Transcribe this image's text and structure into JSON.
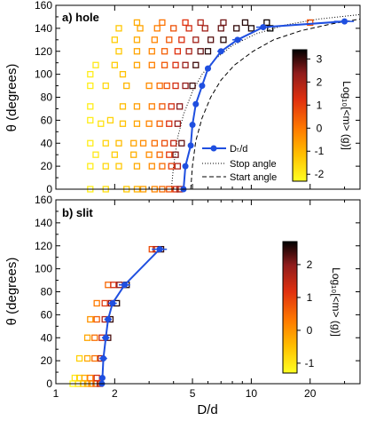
{
  "x_axis": {
    "label": "D/d",
    "ticks": [
      1,
      2,
      5,
      10,
      20
    ],
    "tick_labels": [
      "1",
      "2",
      "5",
      "10",
      "20"
    ],
    "xlim": [
      1,
      36
    ]
  },
  "chart_data": [
    {
      "type": "scatter",
      "panel_label": "a) hole",
      "ylabel": "θ (degrees)",
      "ylim": [
        0,
        160
      ],
      "y_ticks": [
        0,
        20,
        40,
        60,
        80,
        100,
        120,
        140,
        160
      ],
      "xscale": "log",
      "color_scale": {
        "label": "Log₁₀[<m> (g)]",
        "range": [
          -2.3,
          3.4
        ],
        "ticks": [
          -2,
          -1,
          0,
          1,
          2,
          3
        ],
        "tick_labels": [
          "-2",
          "-1",
          "0",
          "1",
          "2",
          "3"
        ],
        "colormap": [
          "#ffff22",
          "#ffc000",
          "#ff7a00",
          "#e0300f",
          "#901c1c",
          "#000000"
        ]
      },
      "legend": {
        "position": "lower-right",
        "entries": [
          "Dₜ/d",
          "Stop angle",
          "Start angle"
        ]
      },
      "series": [
        {
          "name": "Dₜ/d",
          "color": "#1f4fe0",
          "x": [
            4.5,
            4.6,
            4.9,
            5.0,
            5.2,
            5.6,
            6.0,
            7.0,
            8.5,
            11.5,
            30
          ],
          "y": [
            0,
            20,
            38,
            56,
            74,
            90,
            105,
            120,
            130,
            141,
            146
          ],
          "x_err": [
            0.1,
            0.1,
            0.12,
            0.12,
            0.15,
            0.15,
            0.2,
            0.3,
            0.5,
            0.9,
            3.5
          ]
        },
        {
          "name": "Stop angle",
          "style": "dotted",
          "x": [
            3.9,
            4.0,
            4.2,
            4.5,
            5.0,
            5.6,
            6.5,
            8.0,
            10.5,
            15,
            22,
            36
          ],
          "y": [
            0,
            20,
            45,
            65,
            85,
            100,
            113,
            125,
            135,
            143,
            148,
            152
          ]
        },
        {
          "name": "Start angle",
          "style": "dashed",
          "x": [
            4.9,
            5.0,
            5.2,
            5.6,
            6.2,
            7.0,
            8.2,
            10.2,
            13,
            18,
            26,
            36
          ],
          "y": [
            0,
            20,
            42,
            62,
            80,
            95,
            108,
            120,
            130,
            138,
            144,
            148
          ]
        }
      ],
      "points": [
        {
          "x": 1.5,
          "y": 0,
          "c": -2.0
        },
        {
          "x": 1.8,
          "y": 0,
          "c": -1.7
        },
        {
          "x": 2.3,
          "y": 0,
          "c": -1.3
        },
        {
          "x": 2.6,
          "y": 0,
          "c": -0.9
        },
        {
          "x": 2.8,
          "y": 0,
          "c": -0.6
        },
        {
          "x": 3.2,
          "y": 0,
          "c": -0.2
        },
        {
          "x": 3.5,
          "y": 0,
          "c": 0.2
        },
        {
          "x": 3.8,
          "y": 0,
          "c": 0.6
        },
        {
          "x": 4.1,
          "y": 0,
          "c": 1.2
        },
        {
          "x": 4.3,
          "y": 0,
          "c": 2.0
        },
        {
          "x": 1.5,
          "y": 20,
          "c": -2.0
        },
        {
          "x": 1.8,
          "y": 20,
          "c": -1.6
        },
        {
          "x": 2.1,
          "y": 20,
          "c": -1.3
        },
        {
          "x": 2.6,
          "y": 20,
          "c": -0.8
        },
        {
          "x": 3.1,
          "y": 20,
          "c": -0.3
        },
        {
          "x": 3.5,
          "y": 20,
          "c": 0.2
        },
        {
          "x": 3.9,
          "y": 20,
          "c": 0.9
        },
        {
          "x": 4.2,
          "y": 20,
          "c": 1.8
        },
        {
          "x": 1.6,
          "y": 30,
          "c": -1.9
        },
        {
          "x": 2.0,
          "y": 30,
          "c": -1.4
        },
        {
          "x": 2.5,
          "y": 30,
          "c": -0.9
        },
        {
          "x": 3.0,
          "y": 30,
          "c": -0.3
        },
        {
          "x": 3.4,
          "y": 30,
          "c": 0.3
        },
        {
          "x": 3.8,
          "y": 30,
          "c": 1.0
        },
        {
          "x": 4.1,
          "y": 30,
          "c": 2.4
        },
        {
          "x": 1.5,
          "y": 40,
          "c": -2.0
        },
        {
          "x": 1.8,
          "y": 40,
          "c": -1.5
        },
        {
          "x": 2.1,
          "y": 40,
          "c": -1.1
        },
        {
          "x": 2.5,
          "y": 40,
          "c": -0.7
        },
        {
          "x": 2.8,
          "y": 40,
          "c": -0.3
        },
        {
          "x": 3.2,
          "y": 40,
          "c": 0.2
        },
        {
          "x": 3.6,
          "y": 40,
          "c": 0.7
        },
        {
          "x": 4.0,
          "y": 40,
          "c": 1.5
        },
        {
          "x": 4.4,
          "y": 40,
          "c": 2.6
        },
        {
          "x": 1.7,
          "y": 57,
          "c": -1.8
        },
        {
          "x": 2.2,
          "y": 57,
          "c": -1.2
        },
        {
          "x": 2.6,
          "y": 57,
          "c": -0.7
        },
        {
          "x": 3.0,
          "y": 57,
          "c": -0.2
        },
        {
          "x": 3.4,
          "y": 57,
          "c": 0.4
        },
        {
          "x": 3.8,
          "y": 57,
          "c": 1.2
        },
        {
          "x": 4.2,
          "y": 57,
          "c": 2.2
        },
        {
          "x": 1.5,
          "y": 60,
          "c": -2.0
        },
        {
          "x": 1.9,
          "y": 60,
          "c": -1.5
        },
        {
          "x": 1.5,
          "y": 72,
          "c": -2.0
        },
        {
          "x": 2.2,
          "y": 72,
          "c": -1.1
        },
        {
          "x": 2.6,
          "y": 72,
          "c": -0.6
        },
        {
          "x": 3.1,
          "y": 72,
          "c": -0.1
        },
        {
          "x": 3.5,
          "y": 72,
          "c": 0.5
        },
        {
          "x": 3.9,
          "y": 72,
          "c": 1.3
        },
        {
          "x": 4.3,
          "y": 72,
          "c": 2.3
        },
        {
          "x": 1.5,
          "y": 90,
          "c": -2.0
        },
        {
          "x": 1.8,
          "y": 90,
          "c": -1.6
        },
        {
          "x": 2.3,
          "y": 90,
          "c": -1.0
        },
        {
          "x": 3.0,
          "y": 90,
          "c": -0.3
        },
        {
          "x": 3.4,
          "y": 90,
          "c": 0.2
        },
        {
          "x": 3.7,
          "y": 90,
          "c": 0.6
        },
        {
          "x": 4.1,
          "y": 90,
          "c": 1.3
        },
        {
          "x": 4.6,
          "y": 90,
          "c": 2.2
        },
        {
          "x": 5.0,
          "y": 90,
          "c": 2.9
        },
        {
          "x": 1.5,
          "y": 100,
          "c": -2.0
        },
        {
          "x": 2.2,
          "y": 100,
          "c": -1.2
        },
        {
          "x": 1.6,
          "y": 108,
          "c": -1.9
        },
        {
          "x": 2.0,
          "y": 108,
          "c": -1.4
        },
        {
          "x": 2.6,
          "y": 108,
          "c": -0.7
        },
        {
          "x": 3.1,
          "y": 108,
          "c": -0.1
        },
        {
          "x": 3.6,
          "y": 108,
          "c": 0.5
        },
        {
          "x": 4.1,
          "y": 108,
          "c": 1.2
        },
        {
          "x": 4.6,
          "y": 108,
          "c": 2.1
        },
        {
          "x": 5.2,
          "y": 108,
          "c": 2.9
        },
        {
          "x": 2.1,
          "y": 120,
          "c": -1.3
        },
        {
          "x": 2.6,
          "y": 120,
          "c": -0.7
        },
        {
          "x": 3.1,
          "y": 120,
          "c": -0.2
        },
        {
          "x": 3.6,
          "y": 120,
          "c": 0.4
        },
        {
          "x": 4.2,
          "y": 120,
          "c": 1.1
        },
        {
          "x": 4.8,
          "y": 120,
          "c": 1.9
        },
        {
          "x": 5.5,
          "y": 120,
          "c": 2.6
        },
        {
          "x": 6.0,
          "y": 120,
          "c": 3.1
        },
        {
          "x": 2.0,
          "y": 130,
          "c": -1.4
        },
        {
          "x": 2.6,
          "y": 130,
          "c": -0.8
        },
        {
          "x": 3.2,
          "y": 130,
          "c": -0.2
        },
        {
          "x": 3.8,
          "y": 130,
          "c": 0.5
        },
        {
          "x": 4.4,
          "y": 130,
          "c": 1.2
        },
        {
          "x": 5.2,
          "y": 130,
          "c": 2.0
        },
        {
          "x": 6.2,
          "y": 130,
          "c": 2.7
        },
        {
          "x": 7.2,
          "y": 130,
          "c": 3.1
        },
        {
          "x": 2.1,
          "y": 140,
          "c": -1.3
        },
        {
          "x": 2.7,
          "y": 140,
          "c": -0.7
        },
        {
          "x": 3.3,
          "y": 140,
          "c": -0.1
        },
        {
          "x": 4.0,
          "y": 140,
          "c": 0.6
        },
        {
          "x": 4.8,
          "y": 140,
          "c": 1.3
        },
        {
          "x": 5.8,
          "y": 140,
          "c": 2.0
        },
        {
          "x": 7.0,
          "y": 140,
          "c": 2.6
        },
        {
          "x": 8.4,
          "y": 140,
          "c": 3.0
        },
        {
          "x": 10.0,
          "y": 140,
          "c": 3.2
        },
        {
          "x": 12.5,
          "y": 140,
          "c": 3.4
        },
        {
          "x": 2.6,
          "y": 145,
          "c": -0.8
        },
        {
          "x": 3.5,
          "y": 145,
          "c": 0.1
        },
        {
          "x": 4.6,
          "y": 145,
          "c": 1.1
        },
        {
          "x": 5.5,
          "y": 145,
          "c": 1.8
        },
        {
          "x": 7.2,
          "y": 145,
          "c": 2.5
        },
        {
          "x": 9.3,
          "y": 145,
          "c": 3.1
        },
        {
          "x": 12,
          "y": 145,
          "c": 3.3
        },
        {
          "x": 20,
          "y": 145,
          "c": 0.6
        }
      ]
    },
    {
      "type": "scatter",
      "panel_label": "b) slit",
      "ylabel": "θ (degrees)",
      "ylim": [
        0,
        160
      ],
      "y_ticks": [
        0,
        20,
        40,
        60,
        80,
        100,
        120,
        140,
        160
      ],
      "xscale": "log",
      "color_scale": {
        "label": "Log₁₀[<m> (g)]",
        "range": [
          -1.3,
          2.7
        ],
        "ticks": [
          -1,
          0,
          1,
          2
        ],
        "tick_labels": [
          "-1",
          "0",
          "1",
          "2"
        ],
        "colormap": [
          "#ffff22",
          "#ffc000",
          "#ff7a00",
          "#e0300f",
          "#901c1c",
          "#000000"
        ]
      },
      "series": [
        {
          "name": "Dₜ/d",
          "color": "#1f4fe0",
          "x": [
            1.72,
            1.73,
            1.75,
            1.8,
            1.85,
            1.95,
            2.25,
            3.4
          ],
          "y": [
            0,
            5,
            22,
            40,
            56,
            70,
            86,
            117
          ],
          "x_err": [
            0.06,
            0.06,
            0.08,
            0.08,
            0.08,
            0.1,
            0.15,
            0.3
          ]
        }
      ],
      "points": [
        {
          "x": 1.22,
          "y": 0,
          "c": -1.2
        },
        {
          "x": 1.3,
          "y": 0,
          "c": -0.9
        },
        {
          "x": 1.38,
          "y": 0,
          "c": -0.6
        },
        {
          "x": 1.45,
          "y": 0,
          "c": -0.3
        },
        {
          "x": 1.52,
          "y": 0,
          "c": 0.1
        },
        {
          "x": 1.6,
          "y": 0,
          "c": 0.6
        },
        {
          "x": 1.68,
          "y": 0,
          "c": 1.5
        },
        {
          "x": 1.25,
          "y": 5,
          "c": -1.0
        },
        {
          "x": 1.32,
          "y": 5,
          "c": -0.7
        },
        {
          "x": 1.4,
          "y": 5,
          "c": -0.3
        },
        {
          "x": 1.5,
          "y": 5,
          "c": 0.3
        },
        {
          "x": 1.62,
          "y": 5,
          "c": 1.2
        },
        {
          "x": 1.32,
          "y": 22,
          "c": -0.7
        },
        {
          "x": 1.45,
          "y": 22,
          "c": -0.2
        },
        {
          "x": 1.58,
          "y": 22,
          "c": 0.4
        },
        {
          "x": 1.7,
          "y": 22,
          "c": 1.6
        },
        {
          "x": 1.45,
          "y": 40,
          "c": -0.2
        },
        {
          "x": 1.58,
          "y": 40,
          "c": 0.4
        },
        {
          "x": 1.72,
          "y": 40,
          "c": 1.4
        },
        {
          "x": 1.85,
          "y": 40,
          "c": 2.3
        },
        {
          "x": 1.5,
          "y": 56,
          "c": 0.0
        },
        {
          "x": 1.62,
          "y": 56,
          "c": 0.6
        },
        {
          "x": 1.78,
          "y": 56,
          "c": 1.6
        },
        {
          "x": 1.9,
          "y": 56,
          "c": 2.4
        },
        {
          "x": 1.62,
          "y": 70,
          "c": 0.3
        },
        {
          "x": 1.78,
          "y": 70,
          "c": 1.0
        },
        {
          "x": 1.92,
          "y": 70,
          "c": 1.9
        },
        {
          "x": 2.05,
          "y": 70,
          "c": 2.5
        },
        {
          "x": 1.85,
          "y": 86,
          "c": 0.5
        },
        {
          "x": 1.97,
          "y": 86,
          "c": 1.2
        },
        {
          "x": 2.12,
          "y": 86,
          "c": 1.9
        },
        {
          "x": 2.3,
          "y": 86,
          "c": 2.5
        },
        {
          "x": 3.1,
          "y": 117,
          "c": 0.8
        },
        {
          "x": 3.25,
          "y": 117,
          "c": 1.5
        },
        {
          "x": 3.45,
          "y": 117,
          "c": 2.4
        }
      ]
    }
  ]
}
